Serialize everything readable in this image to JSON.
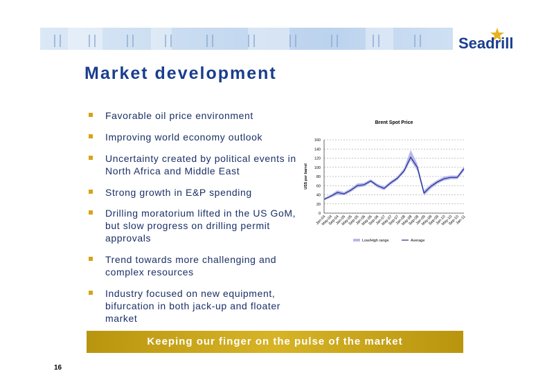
{
  "slide": {
    "title": "Market development",
    "bullets": [
      "Favorable oil price environment",
      "Improving world economy outlook",
      "Uncertainty created by political events in North Africa and Middle East",
      "Strong growth in E&P spending",
      "Drilling moratorium lifted in the US GoM, but slow progress on drilling permit approvals",
      "Trend towards more challenging and complex resources",
      "Industry focused on new equipment, bifurcation in both jack-up and floater market"
    ],
    "footer": "Keeping our finger on the pulse of the market",
    "page_number": "16",
    "logo": "Seadrill",
    "colors": {
      "title": "#1a3e8c",
      "bullet_marker": "#d8a21a",
      "footer_bar": "#c9a41c"
    }
  },
  "chart_data": {
    "type": "line",
    "title": "Brent Spot Price",
    "ylabel": "US$ per barrel",
    "xlabel": "",
    "ylim": [
      0,
      160
    ],
    "yticks": [
      0,
      20,
      40,
      60,
      80,
      100,
      120,
      140,
      160
    ],
    "grid": true,
    "legend": [
      "Low/High range",
      "Average"
    ],
    "legend_position": "bottom",
    "categories": [
      "Jan-04",
      "May-04",
      "Sep-04",
      "Jan-05",
      "May-05",
      "Sep-05",
      "Jan-06",
      "May-06",
      "Sep-06",
      "Jan-07",
      "May-07",
      "Sep-07",
      "Jan-08",
      "May-08",
      "Sep-08",
      "Jan-09",
      "May-09",
      "Sep-09",
      "Jan-10",
      "May-10",
      "Sep-10",
      "Jan-11"
    ],
    "series": [
      {
        "name": "Average",
        "values": [
          30,
          37,
          45,
          42,
          50,
          60,
          62,
          70,
          60,
          54,
          66,
          76,
          92,
          122,
          100,
          44,
          58,
          68,
          75,
          78,
          78,
          97
        ]
      },
      {
        "name": "Low/High range",
        "low": [
          28,
          34,
          40,
          39,
          46,
          56,
          58,
          67,
          56,
          50,
          62,
          72,
          88,
          115,
          92,
          38,
          53,
          64,
          71,
          74,
          74,
          92
        ],
        "high": [
          33,
          40,
          50,
          46,
          54,
          65,
          66,
          74,
          64,
          58,
          70,
          80,
          98,
          138,
          108,
          50,
          63,
          72,
          80,
          82,
          82,
          102
        ]
      }
    ]
  }
}
